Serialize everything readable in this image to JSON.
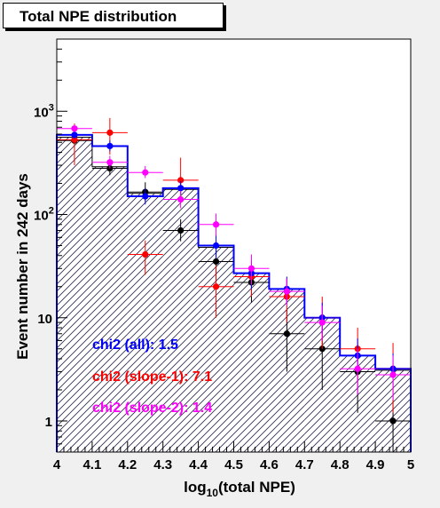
{
  "chart_data": {
    "type": "bar",
    "title": "Total NPE distribution",
    "xlabel": {
      "main": "log",
      "sub": "10",
      "rest": "(total NPE)"
    },
    "ylabel": "Event number in 242 days",
    "xlim": [
      4.0,
      5.0
    ],
    "ylim": [
      0.5,
      5000
    ],
    "yscale": "log",
    "grid": false,
    "x_ticks": [
      "4",
      "4.1",
      "4.2",
      "4.3",
      "4.4",
      "4.5",
      "4.6",
      "4.7",
      "4.8",
      "4.9",
      "5"
    ],
    "y_ticks": [
      {
        "value": 1,
        "base": "1",
        "exp": ""
      },
      {
        "value": 10,
        "base": "10",
        "exp": ""
      },
      {
        "value": 100,
        "base": "10",
        "exp": "2"
      },
      {
        "value": 1000,
        "base": "10",
        "exp": "3"
      }
    ],
    "bins": [
      4.0,
      4.1,
      4.2,
      4.3,
      4.4,
      4.5,
      4.6,
      4.7,
      4.8,
      4.9,
      5.0
    ],
    "histograms": [
      {
        "color": "#000000",
        "values": [
          560,
          290,
          160,
          175,
          48,
          27,
          19,
          10,
          4.3,
          3.1
        ],
        "hatched": true
      },
      {
        "color": "#0000ff",
        "values": [
          590,
          460,
          150,
          180,
          50,
          27,
          19,
          10,
          4.3,
          3.2
        ],
        "hatched": false
      }
    ],
    "series": [
      {
        "color": "#000000",
        "x": [
          4.05,
          4.15,
          4.25,
          4.35,
          4.45,
          4.55,
          4.65,
          4.75,
          4.85,
          4.95
        ],
        "y": [
          520,
          280,
          165,
          70,
          35,
          22,
          7,
          5,
          3,
          1
        ],
        "err_lo": [
          60,
          40,
          30,
          15,
          12,
          8,
          4,
          3,
          1.8,
          0.7
        ],
        "err_hi": [
          80,
          55,
          40,
          20,
          15,
          9,
          5,
          4,
          2.5,
          1.4
        ]
      },
      {
        "color": "#ff0000",
        "x": [
          4.05,
          4.15,
          4.25,
          4.35,
          4.45,
          4.55,
          4.65,
          4.75,
          4.85,
          4.95
        ],
        "y": [
          530,
          620,
          41,
          215,
          20,
          25,
          16,
          10,
          5,
          3.2
        ],
        "err_lo": [
          230,
          240,
          15,
          80,
          10,
          9,
          7,
          5,
          2.5,
          2
        ],
        "err_hi": [
          230,
          240,
          15,
          140,
          12,
          10,
          8,
          6,
          3,
          2.5
        ]
      },
      {
        "color": "#0000ff",
        "x": [
          4.05,
          4.15,
          4.25,
          4.35,
          4.45,
          4.55,
          4.65,
          4.75,
          4.85,
          4.95
        ],
        "y": [
          590,
          460,
          150,
          180,
          50,
          27,
          19,
          10,
          4.3,
          3.2
        ],
        "err_lo": [
          50,
          50,
          25,
          25,
          12,
          8,
          5,
          3,
          1.5,
          1
        ],
        "err_hi": [
          60,
          60,
          30,
          30,
          14,
          9,
          6,
          4,
          2,
          1.3
        ]
      },
      {
        "color": "#ff00ff",
        "x": [
          4.05,
          4.15,
          4.25,
          4.35,
          4.45,
          4.55,
          4.65,
          4.75,
          4.85,
          4.95
        ],
        "y": [
          680,
          320,
          255,
          140,
          80,
          30,
          18,
          9,
          3.2,
          2.8
        ],
        "err_lo": [
          50,
          40,
          30,
          25,
          18,
          9,
          5,
          3,
          1.4,
          1.2
        ],
        "err_hi": [
          60,
          50,
          40,
          30,
          22,
          11,
          6,
          4,
          1.8,
          1.5
        ]
      }
    ],
    "legend": [
      {
        "label": "chi2 (all): 1.5",
        "color": "#0000ff"
      },
      {
        "label": "chi2 (slope-1): 7.1",
        "color": "#ff0000"
      },
      {
        "label": "chi2 (slope-2): 1.4",
        "color": "#ff00ff"
      }
    ],
    "legend_position": "bottom-left"
  }
}
